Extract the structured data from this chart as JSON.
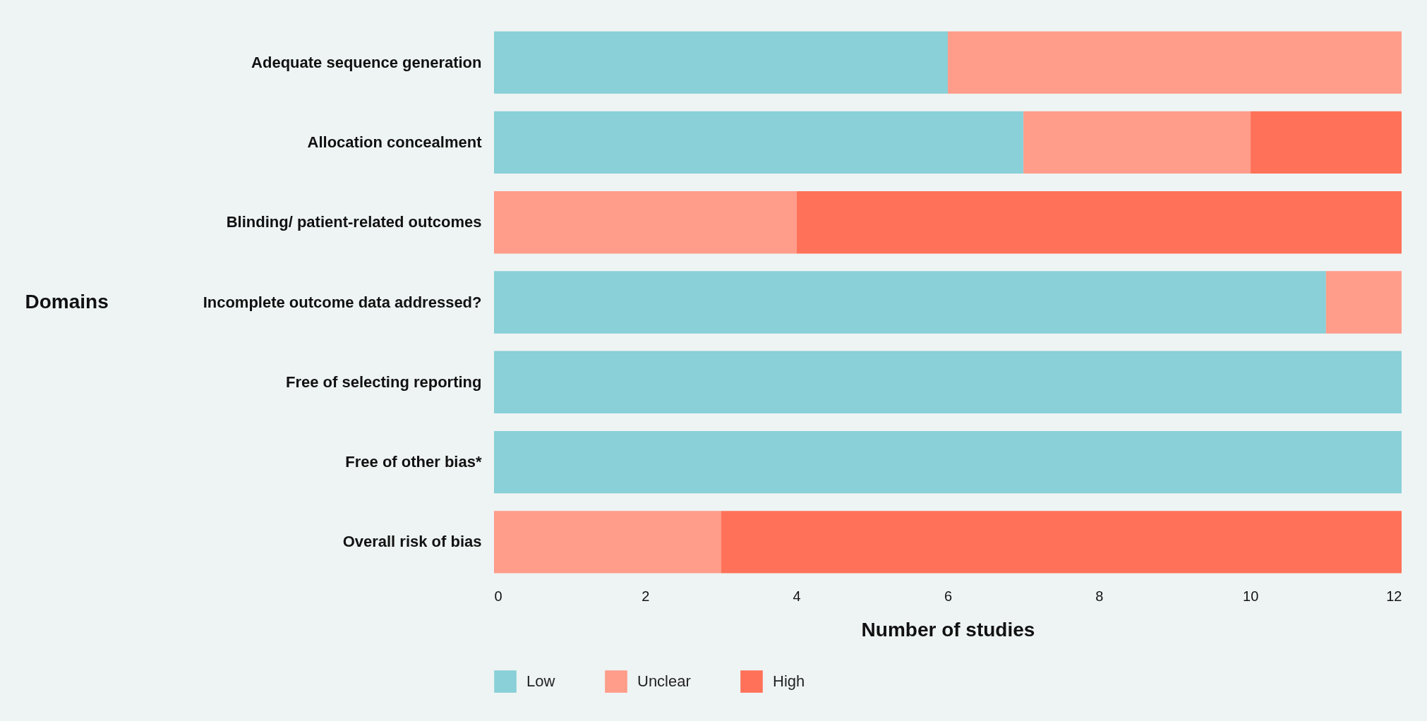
{
  "chart_data": {
    "type": "bar",
    "orientation": "horizontal",
    "stacked": true,
    "xlabel": "Number of studies",
    "ylabel": "Domains",
    "categories": [
      "Adequate sequence generation",
      "Allocation concealment",
      "Blinding/ patient-related outcomes",
      "Incomplete outcome data addressed?",
      "Free of selecting reporting",
      "Free of other bias*",
      "Overall risk of bias"
    ],
    "series": [
      {
        "name": "Low",
        "color": "#89d0d8",
        "values": [
          6,
          7,
          null,
          11,
          12,
          12,
          null
        ]
      },
      {
        "name": "Unclear",
        "color": "#ff9c8a",
        "values": [
          6,
          3,
          4,
          1,
          null,
          null,
          3
        ]
      },
      {
        "name": "High",
        "color": "#ff7259",
        "values": [
          null,
          2,
          8,
          null,
          null,
          null,
          9
        ]
      }
    ],
    "xlim": [
      0,
      12
    ],
    "xticks": [
      0,
      2,
      4,
      6,
      8,
      10,
      12
    ],
    "grid": false,
    "legend": "bottom left"
  }
}
